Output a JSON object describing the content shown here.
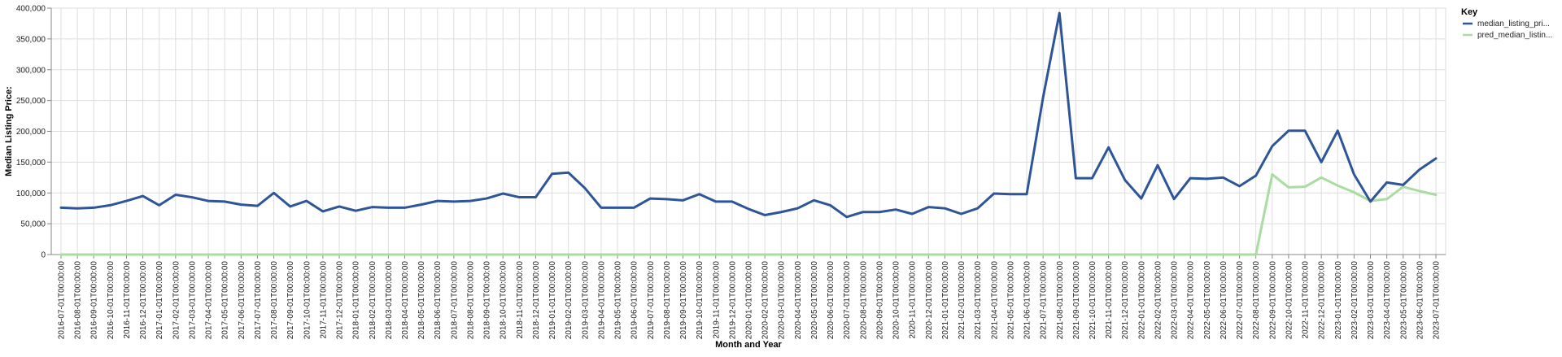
{
  "chart_data": {
    "type": "line",
    "xlabel": "Month and Year",
    "ylabel": "Median Listing Price:",
    "ylim": [
      0,
      400000
    ],
    "yticks": [
      0,
      50000,
      100000,
      150000,
      200000,
      250000,
      300000,
      350000,
      400000
    ],
    "grid": true,
    "legend_title": "Key",
    "legend_position": "top-right",
    "x": [
      "2016-07-01T00:00:00",
      "2016-08-01T00:00:00",
      "2016-09-01T00:00:00",
      "2016-10-01T00:00:00",
      "2016-11-01T00:00:00",
      "2016-12-01T00:00:00",
      "2017-01-01T00:00:00",
      "2017-02-01T00:00:00",
      "2017-03-01T00:00:00",
      "2017-04-01T00:00:00",
      "2017-05-01T00:00:00",
      "2017-06-01T00:00:00",
      "2017-07-01T00:00:00",
      "2017-08-01T00:00:00",
      "2017-09-01T00:00:00",
      "2017-10-01T00:00:00",
      "2017-11-01T00:00:00",
      "2017-12-01T00:00:00",
      "2018-01-01T00:00:00",
      "2018-02-01T00:00:00",
      "2018-03-01T00:00:00",
      "2018-04-01T00:00:00",
      "2018-05-01T00:00:00",
      "2018-06-01T00:00:00",
      "2018-07-01T00:00:00",
      "2018-08-01T00:00:00",
      "2018-09-01T00:00:00",
      "2018-10-01T00:00:00",
      "2018-11-01T00:00:00",
      "2018-12-01T00:00:00",
      "2019-01-01T00:00:00",
      "2019-02-01T00:00:00",
      "2019-03-01T00:00:00",
      "2019-04-01T00:00:00",
      "2019-05-01T00:00:00",
      "2019-06-01T00:00:00",
      "2019-07-01T00:00:00",
      "2019-08-01T00:00:00",
      "2019-09-01T00:00:00",
      "2019-10-01T00:00:00",
      "2019-11-01T00:00:00",
      "2019-12-01T00:00:00",
      "2020-01-01T00:00:00",
      "2020-02-01T00:00:00",
      "2020-03-01T00:00:00",
      "2020-04-01T00:00:00",
      "2020-05-01T00:00:00",
      "2020-06-01T00:00:00",
      "2020-07-01T00:00:00",
      "2020-08-01T00:00:00",
      "2020-09-01T00:00:00",
      "2020-10-01T00:00:00",
      "2020-11-01T00:00:00",
      "2020-12-01T00:00:00",
      "2021-01-01T00:00:00",
      "2021-02-01T00:00:00",
      "2021-03-01T00:00:00",
      "2021-04-01T00:00:00",
      "2021-05-01T00:00:00",
      "2021-06-01T00:00:00",
      "2021-07-01T00:00:00",
      "2021-08-01T00:00:00",
      "2021-09-01T00:00:00",
      "2021-10-01T00:00:00",
      "2021-11-01T00:00:00",
      "2021-12-01T00:00:00",
      "2022-01-01T00:00:00",
      "2022-02-01T00:00:00",
      "2022-03-01T00:00:00",
      "2022-04-01T00:00:00",
      "2022-05-01T00:00:00",
      "2022-06-01T00:00:00",
      "2022-07-01T00:00:00",
      "2022-08-01T00:00:00",
      "2022-09-01T00:00:00",
      "2022-10-01T00:00:00",
      "2022-11-01T00:00:00",
      "2022-12-01T00:00:00",
      "2023-01-01T00:00:00",
      "2023-02-01T00:00:00",
      "2023-03-01T00:00:00",
      "2023-04-01T00:00:00",
      "2023-05-01T00:00:00",
      "2023-06-01T00:00:00",
      "2023-07-01T00:00:00"
    ],
    "series": [
      {
        "name": "median_listing_pri...",
        "color": "#2e5597",
        "values": [
          76000,
          75000,
          76000,
          80000,
          87000,
          95000,
          80000,
          97000,
          93000,
          87000,
          86000,
          81000,
          79000,
          100000,
          78000,
          87000,
          70000,
          78000,
          71000,
          77000,
          76000,
          76000,
          81000,
          87000,
          86000,
          87000,
          91000,
          99000,
          93000,
          93000,
          131000,
          133000,
          108000,
          76000,
          76000,
          76000,
          91000,
          90000,
          88000,
          98000,
          86000,
          86000,
          74000,
          64000,
          69000,
          75000,
          88000,
          80000,
          61000,
          69000,
          69000,
          73000,
          66000,
          77000,
          75000,
          66000,
          75000,
          99000,
          98000,
          98000,
          255000,
          392000,
          124000,
          124000,
          174000,
          121000,
          91000,
          145000,
          90000,
          124000,
          123000,
          125000,
          111000,
          128000,
          176000,
          201000,
          201000,
          150000,
          201000,
          130000,
          86000,
          117000,
          113000,
          138000,
          156000
        ]
      },
      {
        "name": "pred_median_listin...",
        "color": "#a8dca0",
        "values": [
          0,
          0,
          0,
          0,
          0,
          0,
          0,
          0,
          0,
          0,
          0,
          0,
          0,
          0,
          0,
          0,
          0,
          0,
          0,
          0,
          0,
          0,
          0,
          0,
          0,
          0,
          0,
          0,
          0,
          0,
          0,
          0,
          0,
          0,
          0,
          0,
          0,
          0,
          0,
          0,
          0,
          0,
          0,
          0,
          0,
          0,
          0,
          0,
          0,
          0,
          0,
          0,
          0,
          0,
          0,
          0,
          0,
          0,
          0,
          0,
          0,
          0,
          0,
          0,
          0,
          0,
          0,
          0,
          0,
          0,
          0,
          0,
          0,
          0,
          130000,
          109000,
          110000,
          125000,
          112000,
          101000,
          87000,
          90000,
          110000,
          103000,
          97000
        ]
      }
    ]
  }
}
